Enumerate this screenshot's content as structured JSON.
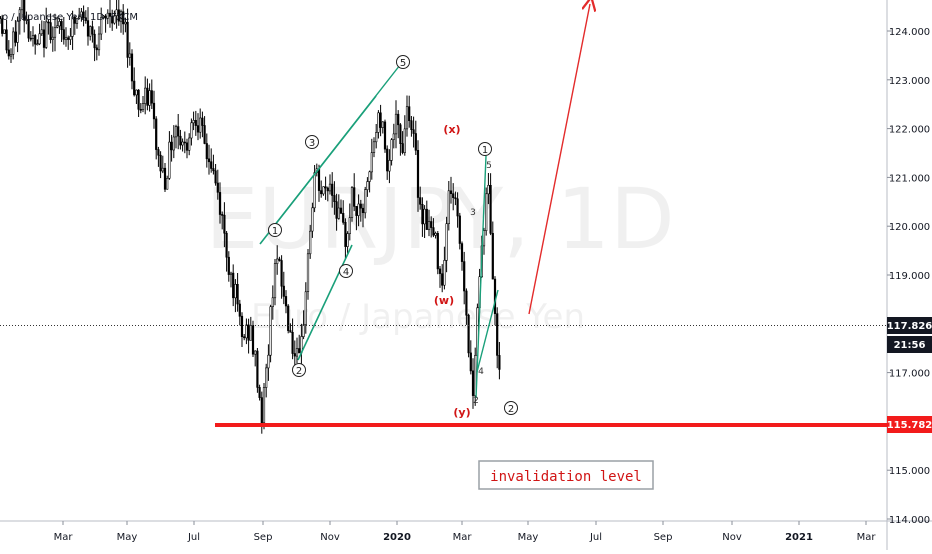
{
  "chart_data": {
    "type": "candlestick",
    "symbol_header": "o / Japanese Yen, 1D, FXCM",
    "watermark_symbol": "EURJPY, 1D",
    "watermark_name": "Euro / Japanese Yen",
    "price_axis": {
      "ticks": [
        "124.000",
        "123.000",
        "122.000",
        "121.000",
        "120.000",
        "119.000",
        "118.000",
        "117.000",
        "116.000",
        "115.000",
        "114.000"
      ],
      "range": [
        113.7,
        124.6
      ]
    },
    "time_axis": {
      "ticks": [
        "Mar",
        "May",
        "Jul",
        "Sep",
        "Nov",
        "2020",
        "Mar",
        "May",
        "Jul",
        "Sep",
        "Nov",
        "2021",
        "Mar"
      ]
    },
    "last_price": "117.826",
    "countdown": "21:56",
    "support_level": "115.782",
    "invalidation_text": "invalidation level",
    "wave_labels": {
      "circled": [
        "1",
        "2",
        "3",
        "4",
        "5",
        "1",
        "2"
      ],
      "corrective": [
        "(x)",
        "(w)",
        "(y)"
      ],
      "minor": [
        "3",
        "5",
        "4",
        "2"
      ]
    },
    "price_path": [
      [
        0,
        124.3
      ],
      [
        10,
        123.4
      ],
      [
        22,
        124.6
      ],
      [
        35,
        123.6
      ],
      [
        50,
        124.1
      ],
      [
        65,
        123.9
      ],
      [
        80,
        124.3
      ],
      [
        95,
        123.8
      ],
      [
        110,
        124.4
      ],
      [
        125,
        124.1
      ],
      [
        132,
        123.1
      ],
      [
        140,
        122.4
      ],
      [
        150,
        122.7
      ],
      [
        158,
        121.4
      ],
      [
        165,
        121.0
      ],
      [
        175,
        122.1
      ],
      [
        185,
        121.6
      ],
      [
        195,
        122.4
      ],
      [
        205,
        121.6
      ],
      [
        212,
        121.2
      ],
      [
        220,
        120.4
      ],
      [
        228,
        119.3
      ],
      [
        235,
        118.6
      ],
      [
        242,
        117.7
      ],
      [
        250,
        117.9
      ],
      [
        256,
        117.1
      ],
      [
        262,
        116.1
      ],
      [
        268,
        117.4
      ],
      [
        275,
        119.4
      ],
      [
        280,
        119.0
      ],
      [
        288,
        118.1
      ],
      [
        295,
        117.3
      ],
      [
        300,
        117.1
      ],
      [
        308,
        119.4
      ],
      [
        315,
        121.1
      ],
      [
        322,
        120.6
      ],
      [
        330,
        120.9
      ],
      [
        338,
        120.3
      ],
      [
        345,
        119.7
      ],
      [
        352,
        120.6
      ],
      [
        360,
        120.1
      ],
      [
        368,
        120.8
      ],
      [
        375,
        121.9
      ],
      [
        380,
        122.3
      ],
      [
        388,
        121.3
      ],
      [
        395,
        122.1
      ],
      [
        402,
        121.6
      ],
      [
        408,
        122.6
      ],
      [
        415,
        121.5
      ],
      [
        420,
        120.4
      ],
      [
        428,
        120.1
      ],
      [
        436,
        119.6
      ],
      [
        442,
        118.9
      ],
      [
        450,
        120.9
      ],
      [
        457,
        120.3
      ],
      [
        462,
        119.3
      ],
      [
        468,
        117.8
      ],
      [
        472,
        116.4
      ],
      [
        478,
        118.6
      ],
      [
        483,
        119.9
      ],
      [
        488,
        120.9
      ],
      [
        492,
        119.4
      ],
      [
        496,
        117.6
      ],
      [
        500,
        117.1
      ]
    ]
  }
}
